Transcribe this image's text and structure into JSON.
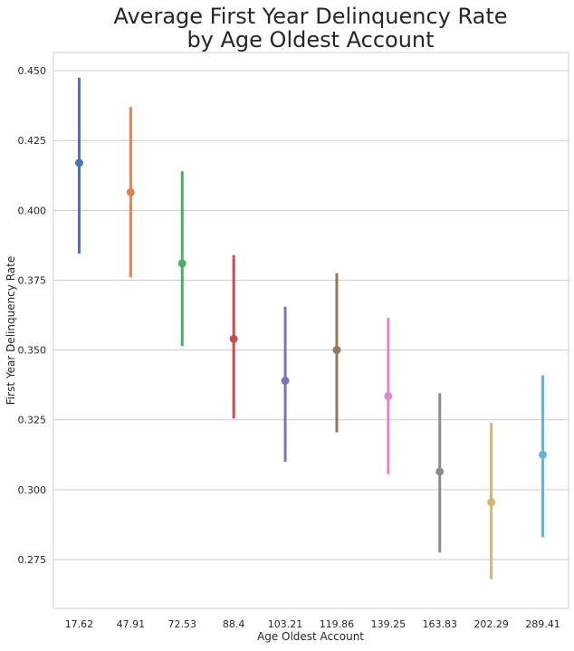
{
  "chart_data": {
    "type": "pointplot",
    "title": [
      "Average First Year Delinquency Rate",
      "by Age Oldest Account"
    ],
    "xlabel": "Age Oldest Account",
    "ylabel": "First Year Delinquency Rate",
    "categories": [
      "17.62",
      "47.91",
      "72.53",
      "88.4",
      "103.21",
      "119.86",
      "139.25",
      "163.83",
      "202.29",
      "289.41"
    ],
    "values": [
      0.417,
      0.4065,
      0.381,
      0.354,
      0.339,
      0.35,
      0.3335,
      0.3065,
      0.2955,
      0.3125
    ],
    "ci_low": [
      0.3845,
      0.376,
      0.3515,
      0.3255,
      0.31,
      0.3205,
      0.3055,
      0.2775,
      0.268,
      0.283
    ],
    "ci_high": [
      0.4475,
      0.437,
      0.414,
      0.384,
      0.3655,
      0.3775,
      0.3615,
      0.3345,
      0.324,
      0.341
    ],
    "colors": [
      "#4c72b0",
      "#dd8452",
      "#55a868",
      "#c44e52",
      "#8172b3",
      "#937860",
      "#da8bc3",
      "#8c8c8c",
      "#ccb974",
      "#64b5cd"
    ],
    "yticks": [
      "0.275",
      "0.300",
      "0.325",
      "0.350",
      "0.375",
      "0.400",
      "0.425",
      "0.450"
    ],
    "ylim": [
      0.2575,
      0.4565
    ],
    "grid": "horizontal",
    "legend": "none"
  }
}
